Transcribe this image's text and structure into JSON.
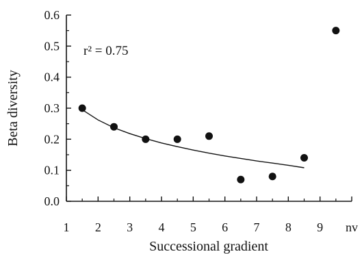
{
  "chart_data": {
    "type": "scatter",
    "title": "",
    "xlabel": "Successional gradient",
    "ylabel": "Beta diversity",
    "annotation": "r² = 0.75",
    "x_ticks": [
      "1",
      "2",
      "3",
      "4",
      "5",
      "6",
      "7",
      "8",
      "9",
      "nv"
    ],
    "y_ticks": [
      "0.0",
      "0.1",
      "0.2",
      "0.3",
      "0.4",
      "0.5",
      "0.6"
    ],
    "xlim": [
      1,
      10
    ],
    "ylim": [
      0,
      0.6
    ],
    "grid": false,
    "points": [
      {
        "x": 1.5,
        "y": 0.3
      },
      {
        "x": 2.5,
        "y": 0.24
      },
      {
        "x": 3.5,
        "y": 0.2
      },
      {
        "x": 4.5,
        "y": 0.2
      },
      {
        "x": 5.5,
        "y": 0.21
      },
      {
        "x": 6.5,
        "y": 0.07
      },
      {
        "x": 7.5,
        "y": 0.08
      },
      {
        "x": 8.5,
        "y": 0.14
      },
      {
        "x": 9.5,
        "y": 0.55
      }
    ],
    "fit_curve": {
      "x": [
        1.5,
        2.0,
        2.5,
        3.0,
        3.5,
        4.0,
        4.5,
        5.0,
        5.5,
        6.0,
        6.5,
        7.0,
        7.5,
        8.0,
        8.5
      ],
      "y": [
        0.295,
        0.262,
        0.237,
        0.218,
        0.202,
        0.188,
        0.176,
        0.165,
        0.155,
        0.146,
        0.138,
        0.13,
        0.123,
        0.116,
        0.108
      ]
    },
    "point_color": "#111111",
    "line_color": "#111111"
  }
}
